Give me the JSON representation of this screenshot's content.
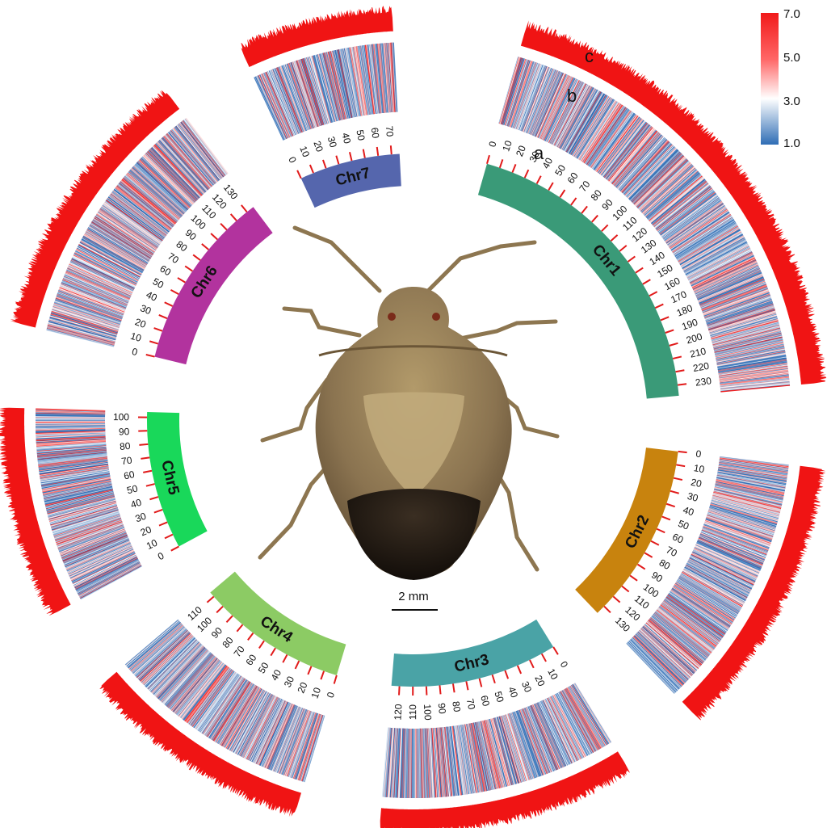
{
  "chart_data": {
    "type": "circos",
    "units": "Mb",
    "chromosomes": [
      {
        "name": "Chr1",
        "length": 238,
        "color": "#3a9a78",
        "ticks": [
          0,
          10,
          20,
          30,
          40,
          50,
          60,
          70,
          80,
          90,
          100,
          110,
          120,
          130,
          140,
          150,
          160,
          170,
          180,
          190,
          200,
          210,
          220,
          230
        ]
      },
      {
        "name": "Chr2",
        "length": 137,
        "color": "#c8830e",
        "ticks": [
          0,
          10,
          20,
          30,
          40,
          50,
          60,
          70,
          80,
          90,
          100,
          110,
          120,
          130
        ]
      },
      {
        "name": "Chr3",
        "length": 126,
        "color": "#4aa3a6",
        "ticks": [
          0,
          10,
          20,
          30,
          40,
          50,
          60,
          70,
          80,
          90,
          100,
          110,
          120
        ]
      },
      {
        "name": "Chr4",
        "length": 114,
        "color": "#8ccb64",
        "ticks": [
          0,
          10,
          20,
          30,
          40,
          50,
          60,
          70,
          80,
          90,
          100,
          110
        ]
      },
      {
        "name": "Chr5",
        "length": 104,
        "color": "#19d85a",
        "ticks": [
          0,
          10,
          20,
          30,
          40,
          50,
          60,
          70,
          80,
          90,
          100
        ]
      },
      {
        "name": "Chr6",
        "length": 136,
        "color": "#b2339e",
        "ticks": [
          0,
          10,
          20,
          30,
          40,
          50,
          60,
          70,
          80,
          90,
          100,
          110,
          120,
          130
        ]
      },
      {
        "name": "Chr7",
        "length": 76,
        "color": "#5566ad",
        "ticks": [
          0,
          10,
          20,
          30,
          40,
          50,
          60,
          70
        ]
      }
    ],
    "tracks": [
      "a",
      "b",
      "c"
    ],
    "heatmap_legend": {
      "labels": [
        "7.0",
        "5.0",
        "3.0",
        "1.0"
      ],
      "colors": [
        "#f11a1a",
        "#ffffff",
        "#2f6db5"
      ]
    },
    "scale_bar": "2 mm"
  },
  "image": {
    "subject": "stink-bug-photo"
  }
}
